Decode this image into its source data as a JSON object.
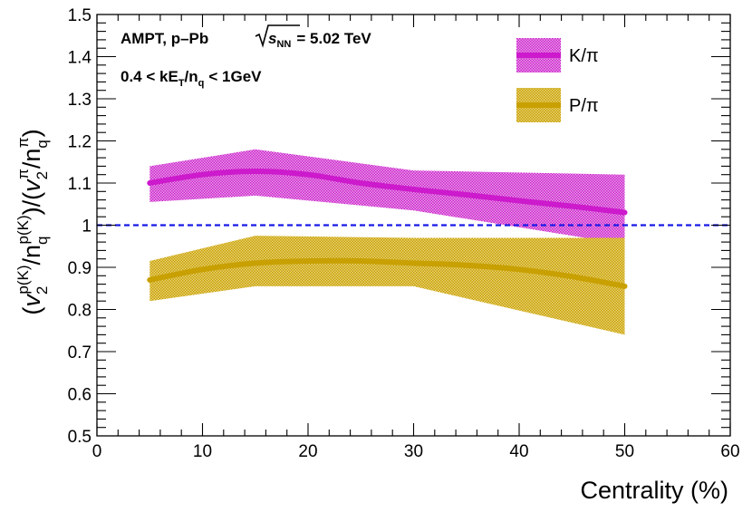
{
  "chart_data": {
    "type": "line",
    "title": "",
    "xlabel": "Centrality (%)",
    "ylabel": {
      "open": "(",
      "v": "v",
      "sub2": "2",
      "sup_num": "p(K)",
      "slash1": "/",
      "n": "n",
      "sub_q": "q",
      "close_mid": ")/(",
      "sup_pi": "π",
      "close": ")"
    },
    "xlim": [
      0,
      60
    ],
    "ylim": [
      0.5,
      1.5
    ],
    "xticks": [
      0,
      10,
      20,
      30,
      40,
      50,
      60
    ],
    "yticks": [
      0.5,
      0.6,
      0.7,
      0.8,
      0.9,
      1,
      1.1,
      1.2,
      1.3,
      1.4,
      1.5
    ],
    "xtick_labels": [
      "0",
      "10",
      "20",
      "30",
      "40",
      "50",
      "60"
    ],
    "ytick_labels": [
      "0.5",
      "0.6",
      "0.7",
      "0.8",
      "0.9",
      "1",
      "1.1",
      "1.2",
      "1.3",
      "1.4",
      "1.5"
    ],
    "reference_line": {
      "y": 1.0,
      "color": "#1a1ae6",
      "style": "dashed"
    },
    "series": [
      {
        "name": "K/π",
        "color": "#cc1acc",
        "x": [
          5,
          10,
          15,
          20,
          25,
          30,
          35,
          40,
          45,
          50
        ],
        "y": [
          1.1,
          1.12,
          1.128,
          1.12,
          1.1,
          1.085,
          1.072,
          1.058,
          1.045,
          1.03
        ],
        "band_x": [
          5,
          15,
          30,
          50
        ],
        "band_low": [
          1.055,
          1.07,
          1.035,
          0.955
        ],
        "band_high": [
          1.14,
          1.18,
          1.13,
          1.12
        ]
      },
      {
        "name": "P/π",
        "color": "#c8a000",
        "x": [
          5,
          10,
          15,
          20,
          25,
          30,
          35,
          40,
          45,
          50
        ],
        "y": [
          0.87,
          0.895,
          0.91,
          0.915,
          0.915,
          0.91,
          0.905,
          0.895,
          0.878,
          0.855
        ],
        "band_x": [
          5,
          15,
          30,
          50
        ],
        "band_low": [
          0.82,
          0.855,
          0.855,
          0.74
        ],
        "band_high": [
          0.915,
          0.975,
          0.97,
          0.97
        ]
      }
    ],
    "annotations": {
      "line1_prefix": "AMPT, p–Pb",
      "sqrt_s": "s",
      "sqrt_s_sub": "NN",
      "line1_suffix": "= 5.02 TeV",
      "line2_a": "0.4 < kE",
      "line2_sub_T": "T",
      "line2_b": "/n",
      "line2_sub_q": "q",
      "line2_c": "< 1GeV"
    },
    "legend": {
      "position": "top-right",
      "entries": [
        "K/π",
        "P/π"
      ]
    }
  }
}
